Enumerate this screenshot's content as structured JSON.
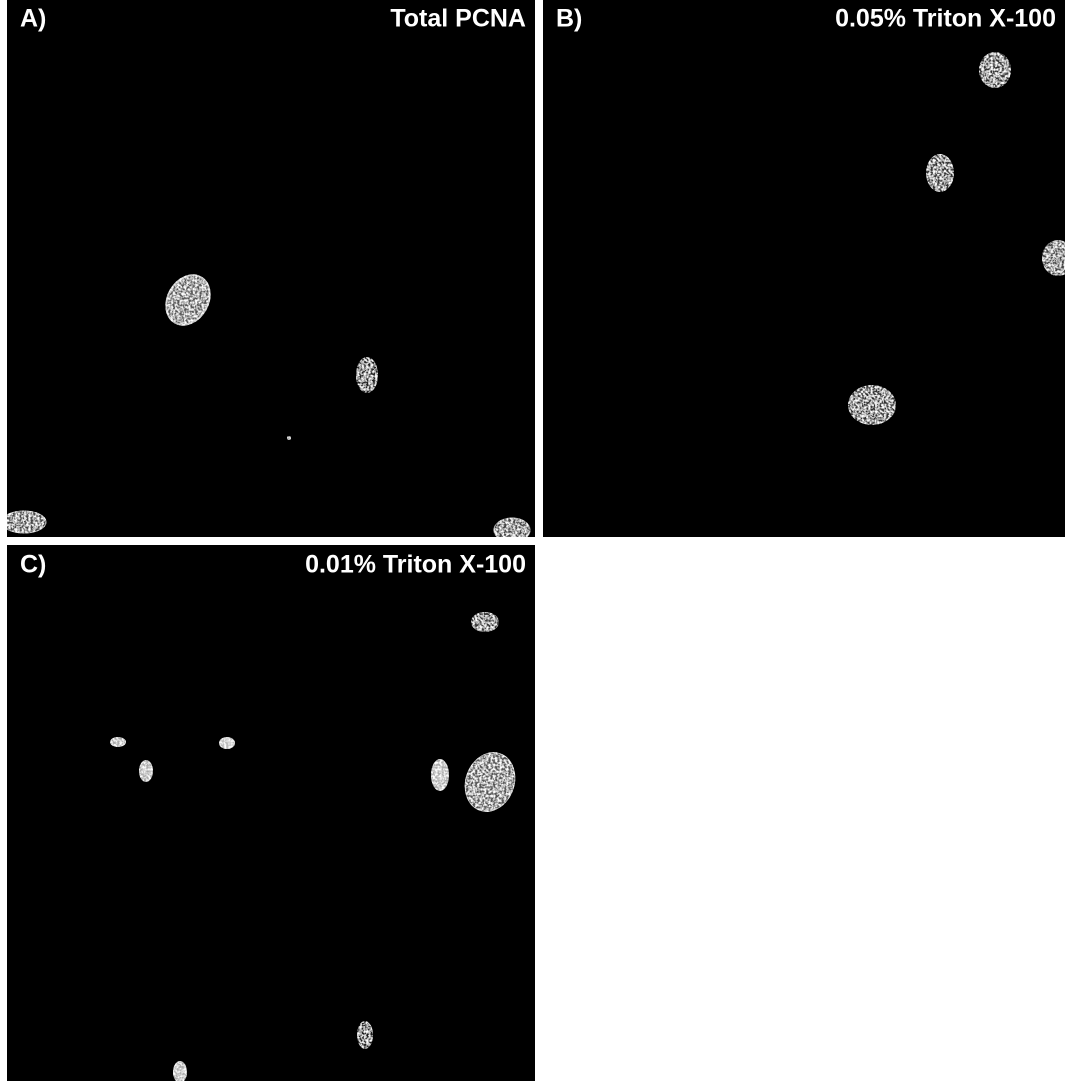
{
  "panels": [
    {
      "letter": "A)",
      "title": "Total PCNA"
    },
    {
      "letter": "B)",
      "title": "0.05% Triton X-100"
    },
    {
      "letter": "C)",
      "title": "0.01% Triton X-100"
    }
  ]
}
